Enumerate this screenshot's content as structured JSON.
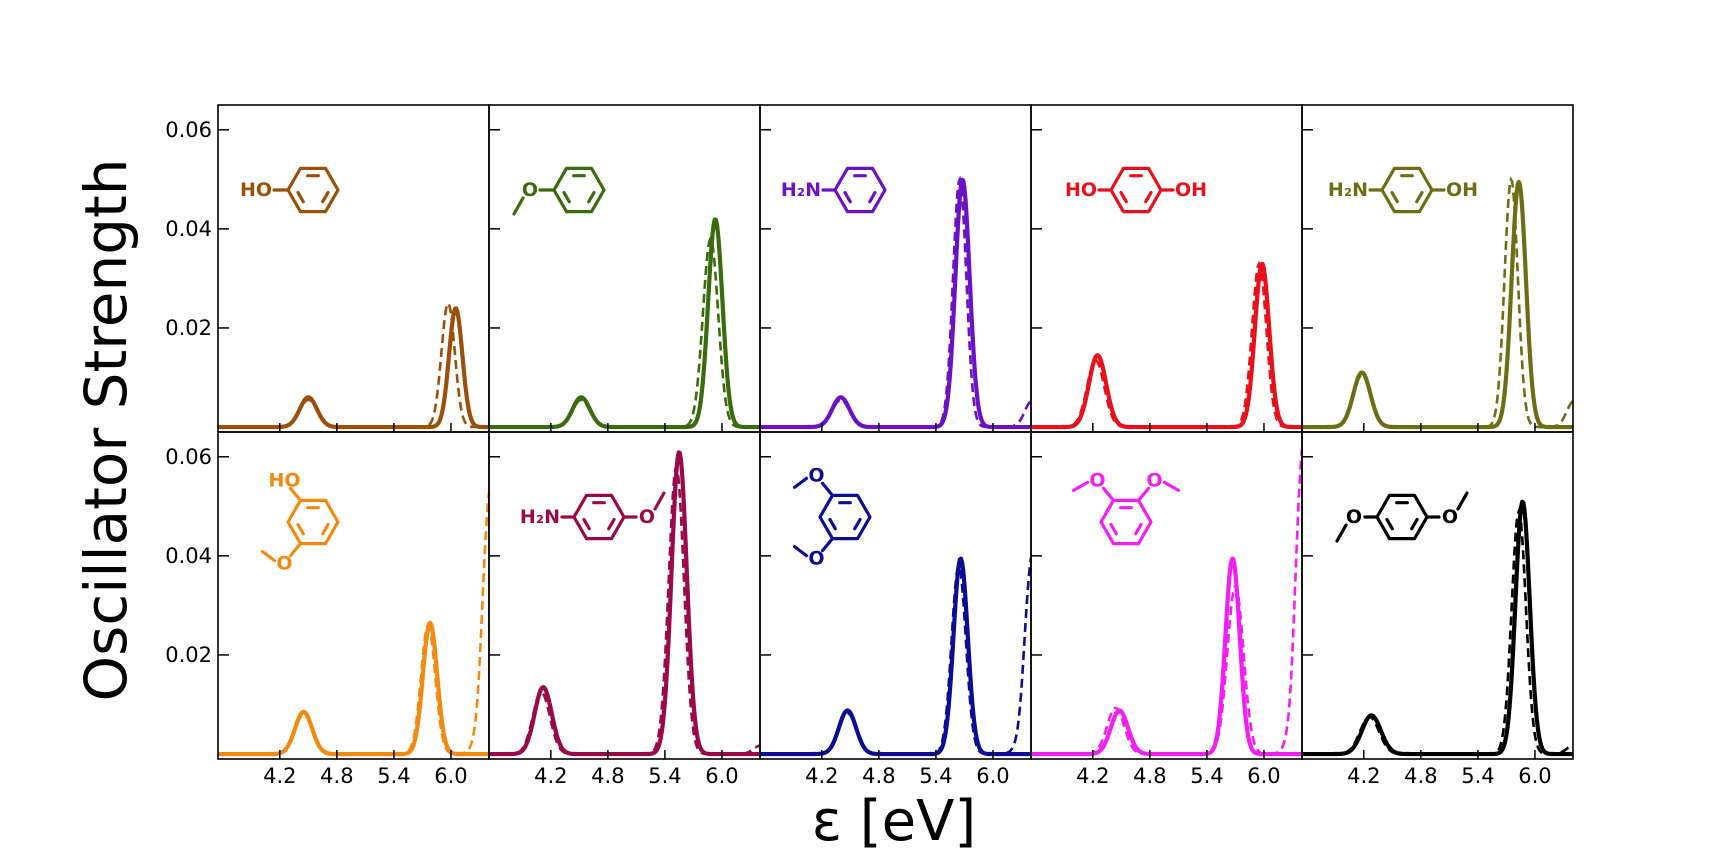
{
  "figure": {
    "ylabel": "Oscillator Strength",
    "xlabel": "ε [eV]",
    "x_tick_labels": [
      "4.2",
      "4.8",
      "5.4",
      "6.0"
    ],
    "y_tick_labels": [
      "0.02",
      "0.04",
      "0.06"
    ]
  },
  "chart_data": {
    "type": "line",
    "layout": "2x5 panel grid",
    "xlabel": "ε [eV]",
    "ylabel": "Oscillator Strength",
    "xlim": [
      3.55,
      6.4
    ],
    "ylim": [
      -0.001,
      0.065
    ],
    "x_ticks": [
      4.2,
      4.8,
      5.4,
      6.0
    ],
    "y_ticks": [
      0.02,
      0.04,
      0.06
    ],
    "line_styles": [
      "solid",
      "dashed"
    ],
    "panels": [
      {
        "color": "#9a4f0b",
        "molecule": "phenol",
        "labels": [
          "HO"
        ],
        "solid_peaks": [
          [
            4.5,
            0.006,
            0.09
          ],
          [
            6.05,
            0.024,
            0.07
          ]
        ],
        "dashed_peaks": [
          [
            4.5,
            0.0055,
            0.09
          ],
          [
            5.97,
            0.025,
            0.07
          ]
        ],
        "dashed_tail": 0
      },
      {
        "color": "#3a6b0f",
        "molecule": "anisole",
        "labels": [
          "O"
        ],
        "solid_peaks": [
          [
            4.52,
            0.006,
            0.09
          ],
          [
            5.93,
            0.042,
            0.075
          ]
        ],
        "dashed_peaks": [
          [
            4.52,
            0.0055,
            0.09
          ],
          [
            5.88,
            0.038,
            0.08
          ]
        ],
        "dashed_tail": 0
      },
      {
        "color": "#6a12c4",
        "molecule": "aniline",
        "labels": [
          "H₂N"
        ],
        "solid_peaks": [
          [
            4.4,
            0.006,
            0.09
          ],
          [
            5.68,
            0.05,
            0.075
          ]
        ],
        "dashed_peaks": [
          [
            4.4,
            0.0055,
            0.09
          ],
          [
            5.65,
            0.05,
            0.07
          ]
        ],
        "dashed_tail": 0.006
      },
      {
        "color": "#e8101a",
        "molecule": "hydroquinone",
        "labels": [
          "HO",
          "OH"
        ],
        "solid_peaks": [
          [
            4.25,
            0.0145,
            0.09
          ],
          [
            5.98,
            0.033,
            0.075
          ]
        ],
        "dashed_peaks": [
          [
            4.23,
            0.0135,
            0.09
          ],
          [
            5.95,
            0.033,
            0.075
          ]
        ],
        "dashed_tail": 0
      },
      {
        "color": "#6f6d14",
        "molecule": "4-aminophenol",
        "labels": [
          "H₂N",
          "OH"
        ],
        "solid_peaks": [
          [
            4.18,
            0.011,
            0.09
          ],
          [
            5.83,
            0.0495,
            0.075
          ]
        ],
        "dashed_peaks": [
          [
            4.18,
            0.0105,
            0.09
          ],
          [
            5.75,
            0.05,
            0.07
          ]
        ],
        "dashed_tail": 0.006
      },
      {
        "color": "#f28a11",
        "molecule": "guaiacol",
        "labels": [
          "HO",
          "O"
        ],
        "solid_peaks": [
          [
            4.45,
            0.0085,
            0.09
          ],
          [
            5.78,
            0.0265,
            0.075
          ]
        ],
        "dashed_peaks": [
          [
            4.45,
            0.008,
            0.09
          ],
          [
            5.76,
            0.026,
            0.075
          ]
        ],
        "dashed_tail": 0.06
      },
      {
        "color": "#9a0a4a",
        "molecule": "4-methoxyaniline",
        "labels": [
          "H₂N",
          "O"
        ],
        "solid_peaks": [
          [
            4.12,
            0.0135,
            0.09
          ],
          [
            5.55,
            0.061,
            0.08
          ]
        ],
        "dashed_peaks": [
          [
            4.1,
            0.0125,
            0.09
          ],
          [
            5.52,
            0.058,
            0.08
          ]
        ],
        "dashed_tail": 0.002
      },
      {
        "color": "#0d0c92",
        "molecule": "1,2-dimethoxybenzene",
        "labels": [
          "O",
          "O"
        ],
        "solid_peaks": [
          [
            4.47,
            0.0088,
            0.09
          ],
          [
            5.66,
            0.0395,
            0.075
          ]
        ],
        "dashed_peaks": [
          [
            4.47,
            0.0083,
            0.09
          ],
          [
            5.64,
            0.038,
            0.075
          ]
        ],
        "dashed_tail": 0.045
      },
      {
        "color": "#f21ef2",
        "molecule": "1,3-dimethoxybenzene",
        "labels": [
          "O",
          "O"
        ],
        "solid_peaks": [
          [
            4.48,
            0.0088,
            0.09
          ],
          [
            5.67,
            0.0395,
            0.075
          ]
        ],
        "dashed_peaks": [
          [
            4.44,
            0.0093,
            0.09
          ],
          [
            5.7,
            0.034,
            0.085
          ]
        ],
        "dashed_tail": 0.07
      },
      {
        "color": "#000000",
        "molecule": "1,4-dimethoxybenzene",
        "labels": [
          "O",
          "O"
        ],
        "solid_peaks": [
          [
            4.28,
            0.0078,
            0.1
          ],
          [
            5.87,
            0.051,
            0.075
          ]
        ],
        "dashed_peaks": [
          [
            4.26,
            0.0075,
            0.1
          ],
          [
            5.83,
            0.049,
            0.075
          ]
        ],
        "dashed_tail": 0.002
      }
    ]
  }
}
